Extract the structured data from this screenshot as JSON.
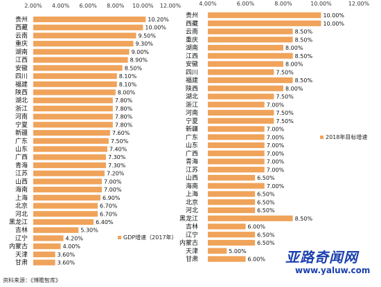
{
  "colors": {
    "bar": "#F0A35A",
    "watermark_top": "#1a3fae",
    "watermark_bottom": "#1a3fae"
  },
  "chart_data": [
    {
      "type": "bar",
      "orientation": "horizontal",
      "xlim": [
        2,
        12
      ],
      "xticks": [
        "2.00%",
        "4.00%",
        "6.00%",
        "8.00%",
        "10.00%",
        "12.00%"
      ],
      "xtick_values": [
        2,
        4,
        6,
        8,
        10,
        12
      ],
      "legend": "GDP增速（2017年）",
      "categories": [
        "贵州",
        "西藏",
        "云南",
        "重庆",
        "湖南",
        "江西",
        "安徽",
        "四川",
        "福建",
        "陕西",
        "湖北",
        "浙江",
        "河南",
        "宁夏",
        "新疆",
        "广东",
        "山东",
        "广西",
        "青海",
        "江苏",
        "山西",
        "海南",
        "上海",
        "北京",
        "河北",
        "黑龙江",
        "吉林",
        "辽宁",
        "内蒙古",
        "天津",
        "甘肃"
      ],
      "values": [
        10.2,
        10.0,
        9.5,
        9.3,
        9.0,
        8.9,
        8.5,
        8.1,
        8.1,
        8.0,
        7.8,
        7.8,
        7.8,
        7.8,
        7.6,
        7.5,
        7.4,
        7.3,
        7.3,
        7.2,
        7.0,
        7.0,
        6.9,
        6.7,
        6.7,
        6.4,
        5.3,
        4.2,
        4.0,
        3.6,
        3.6
      ],
      "labels": [
        "10.20%",
        "10.00%",
        "9.50%",
        "9.30%",
        "9.00%",
        "8.90%",
        "8.50%",
        "8.10%",
        "8.10%",
        "8.00%",
        "7.80%",
        "7.80%",
        "7.80%",
        "7.80%",
        "7.60%",
        "7.50%",
        "7.40%",
        "7.30%",
        "7.30%",
        "7.20%",
        "7.00%",
        "7.00%",
        "6.90%",
        "6.70%",
        "6.70%",
        "6.40%",
        "5.30%",
        "4.20%",
        "4.00%",
        "3.60%",
        "3.60%"
      ]
    },
    {
      "type": "bar",
      "orientation": "horizontal",
      "xlim": [
        4,
        12
      ],
      "xticks": [
        "4.00%",
        "6.00%",
        "8.00%",
        "10.00%",
        "12.00%"
      ],
      "xtick_values": [
        4,
        6,
        8,
        10,
        12
      ],
      "legend": "2018年目标增速",
      "categories": [
        "贵州",
        "西藏",
        "云南",
        "重庆",
        "湖南",
        "江西",
        "安徽",
        "四川",
        "福建",
        "陕西",
        "湖北",
        "浙江",
        "河南",
        "宁夏",
        "新疆",
        "广东",
        "山东",
        "广西",
        "青海",
        "江苏",
        "山西",
        "海南",
        "上海",
        "北京",
        "河北",
        "黑龙江",
        "吉林",
        "辽宁",
        "内蒙古",
        "天津",
        "甘肃"
      ],
      "values": [
        10.0,
        10.0,
        8.5,
        8.5,
        8.0,
        8.5,
        8.0,
        7.5,
        8.5,
        8.0,
        7.5,
        7.0,
        7.5,
        7.5,
        7.0,
        7.0,
        7.0,
        7.0,
        7.0,
        7.0,
        6.5,
        7.0,
        6.5,
        6.5,
        6.5,
        8.5,
        6.0,
        6.5,
        6.5,
        5.0,
        6.0
      ],
      "labels": [
        "10.00%",
        "10.00%",
        "8.50%",
        "8.50%",
        "8.00%",
        "8.50%",
        "8.00%",
        "7.50%",
        "8.50%",
        "8.00%",
        "7.50%",
        "7.00%",
        "7.50%",
        "7.50%",
        "7.00%",
        "7.00%",
        "7.00%",
        "7.00%",
        "7.00%",
        "7.00%",
        "6.50%",
        "7.00%",
        "6.50%",
        "6.50%",
        "6.50%",
        "8.50%",
        "6.00%",
        "6.50%",
        "6.50%",
        "5.00%",
        "6.00%"
      ]
    }
  ],
  "source_note": "资料来源：《博瞻智库》",
  "watermark": {
    "text": "亚路奇闻网",
    "url": "www.yaluw.com"
  }
}
